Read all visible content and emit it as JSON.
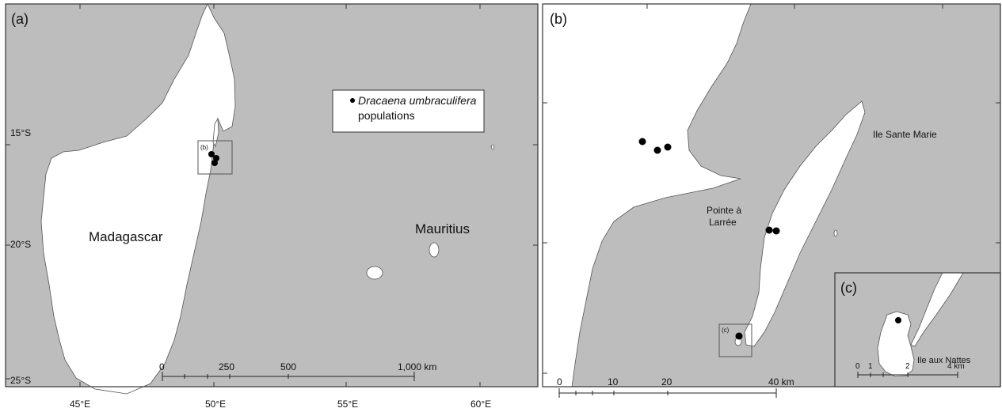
{
  "panels": {
    "a": {
      "label": "(a)",
      "places": {
        "madagascar": "Madagascar",
        "mauritius": "Mauritius"
      },
      "inset_label": "(b)",
      "legend": {
        "species": "Dracaena umbraculifera",
        "suffix": "populations"
      },
      "lat_labels": [
        "15°S",
        "20°S",
        "25°S"
      ],
      "lon_labels": [
        "45°E",
        "50°E",
        "55°E",
        "60°E"
      ],
      "scale": {
        "ticks": [
          "0",
          "250",
          "500",
          "1,000 km"
        ]
      },
      "populations": 3
    },
    "b": {
      "label": "(b)",
      "places": {
        "island": "Ile Sante Marie",
        "point_line1": "Pointe à",
        "point_line2": "Larrée"
      },
      "inset_label": "(c)",
      "scale": {
        "ticks": [
          "0",
          "10",
          "20",
          "40 km"
        ]
      },
      "populations": 6
    },
    "c": {
      "label": "(c)",
      "places": {
        "island": "Ile aux Nattes"
      },
      "scale": {
        "ticks": [
          "0",
          "1",
          "2",
          "4 km"
        ]
      },
      "populations": 1
    }
  },
  "colors": {
    "sea": "#bdbdbd",
    "land": "#ffffff",
    "marker": "#000000"
  }
}
